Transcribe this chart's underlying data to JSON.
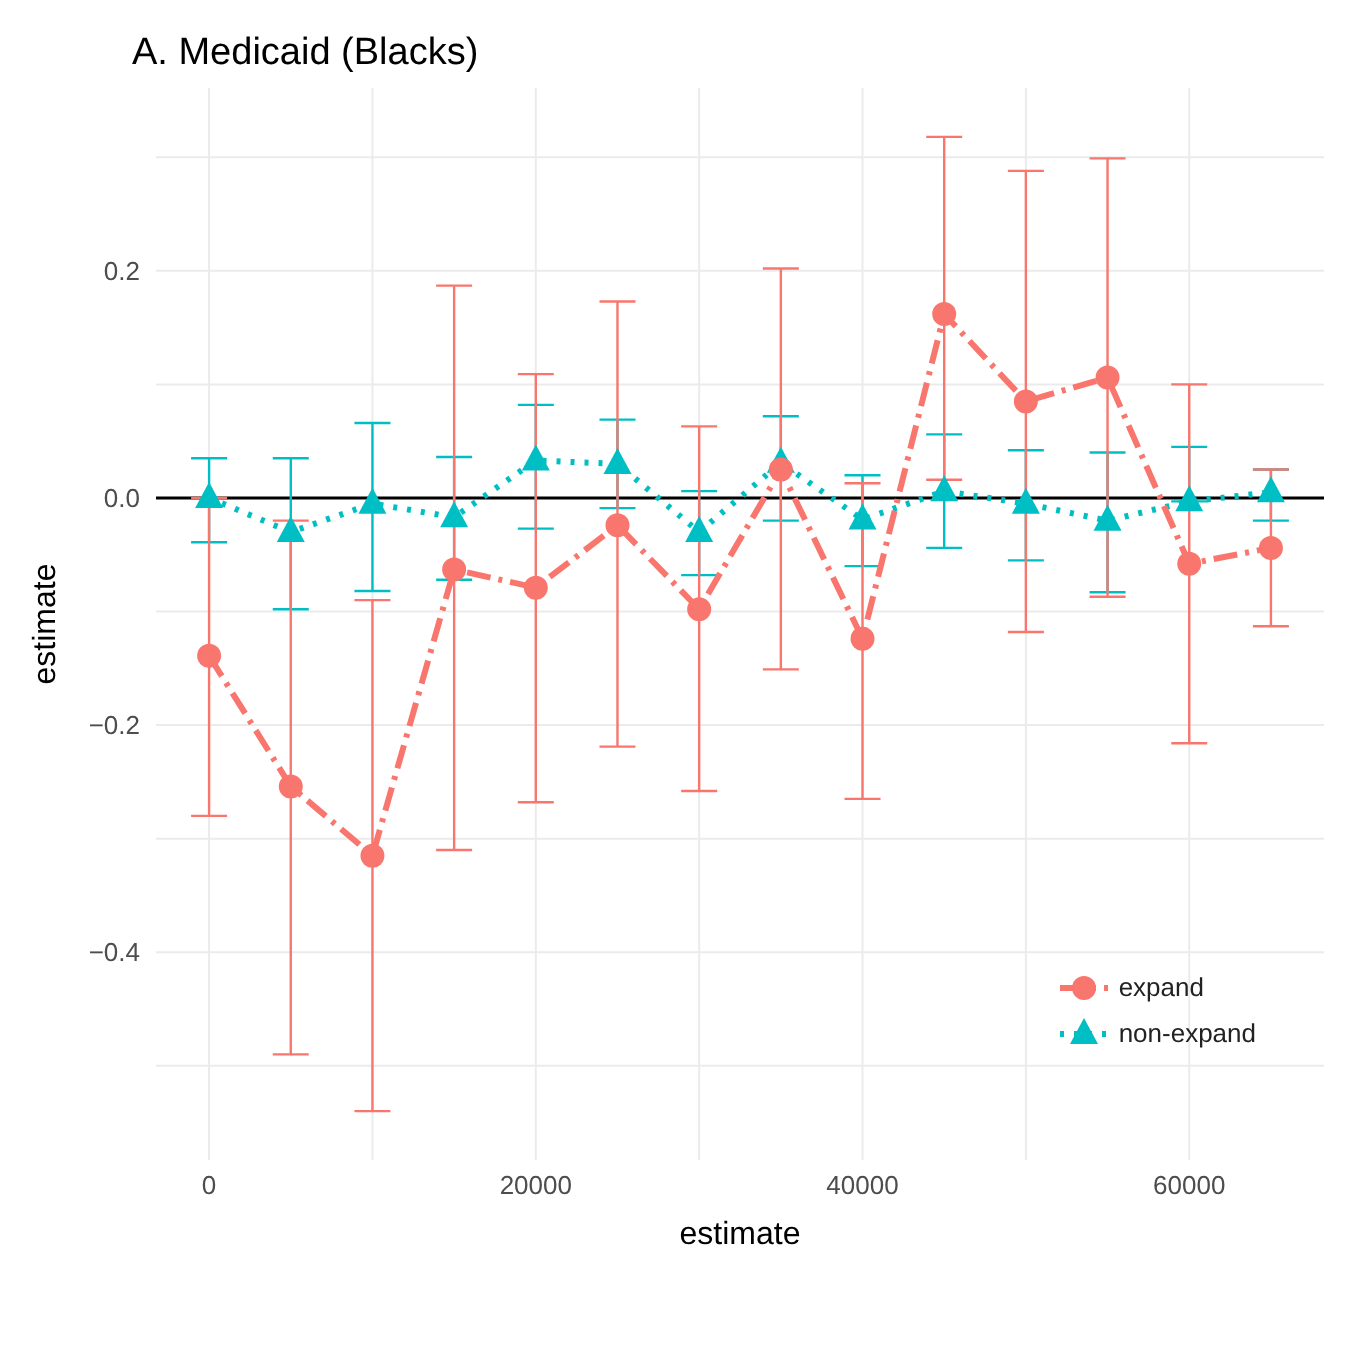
{
  "chart_data": {
    "type": "line",
    "title": "A. Medicaid (Blacks)",
    "xlabel": "estimate",
    "ylabel": "estimate",
    "x": [
      0,
      5000,
      10000,
      15000,
      20000,
      25000,
      30000,
      35000,
      40000,
      45000,
      50000,
      55000,
      60000,
      65000
    ],
    "series": [
      {
        "name": "expand",
        "color": "#f8766d",
        "marker": "circle",
        "line_style": "dashed",
        "values": [
          -0.139,
          -0.254,
          -0.315,
          -0.063,
          -0.079,
          -0.024,
          -0.098,
          0.025,
          -0.124,
          0.162,
          0.085,
          0.106,
          -0.058,
          -0.044
        ],
        "errors": [
          [
            -0.28,
            0.0
          ],
          [
            -0.49,
            -0.02
          ],
          [
            -0.54,
            -0.09
          ],
          [
            -0.31,
            0.187
          ],
          [
            -0.268,
            0.109
          ],
          [
            -0.219,
            0.173
          ],
          [
            -0.258,
            0.063
          ],
          [
            -0.151,
            0.202
          ],
          [
            -0.265,
            0.013
          ],
          [
            0.016,
            0.318
          ],
          [
            -0.118,
            0.288
          ],
          [
            -0.087,
            0.299
          ],
          [
            -0.216,
            0.1
          ],
          [
            -0.113,
            0.025
          ]
        ]
      },
      {
        "name": "non-expand",
        "color": "#00bfc4",
        "marker": "triangle",
        "line_style": "dotted",
        "values": [
          0.0,
          -0.03,
          -0.005,
          -0.017,
          0.033,
          0.03,
          -0.03,
          0.031,
          -0.019,
          0.006,
          -0.005,
          -0.02,
          -0.003,
          0.005
        ],
        "errors": [
          [
            -0.039,
            0.035
          ],
          [
            -0.098,
            0.035
          ],
          [
            -0.082,
            0.066
          ],
          [
            -0.072,
            0.036
          ],
          [
            -0.027,
            0.082
          ],
          [
            -0.009,
            0.069
          ],
          [
            -0.068,
            0.006
          ],
          [
            -0.02,
            0.072
          ],
          [
            -0.06,
            0.02
          ],
          [
            -0.044,
            0.056
          ],
          [
            -0.055,
            0.042
          ],
          [
            -0.083,
            0.04
          ],
          [
            -0.003,
            0.045
          ],
          [
            -0.02,
            0.025
          ]
        ]
      }
    ],
    "xlim": [
      -3250,
      68250
    ],
    "xticks": [
      0,
      {
        "value": 10000,
        "label": null
      },
      20000,
      {
        "value": 30000,
        "label": null
      },
      40000,
      {
        "value": 50000,
        "label": null
      },
      60000
    ],
    "ylim": [
      -0.583,
      0.361
    ],
    "yticks": [
      {
        "value": -0.5,
        "label": null
      },
      {
        "value": -0.4,
        "label": "−0.4"
      },
      {
        "value": -0.3,
        "label": null
      },
      {
        "value": -0.2,
        "label": "−0.2"
      },
      {
        "value": -0.1,
        "label": null
      },
      {
        "value": 0,
        "label": "0.0"
      },
      {
        "value": 0.1,
        "label": null
      },
      {
        "value": 0.2,
        "label": "0.2"
      },
      {
        "value": 0.3,
        "label": null
      }
    ],
    "ref_lines": [
      {
        "axis": "y",
        "value": 0,
        "color": "#000000"
      }
    ],
    "grid": true,
    "legend": "bottom right"
  }
}
